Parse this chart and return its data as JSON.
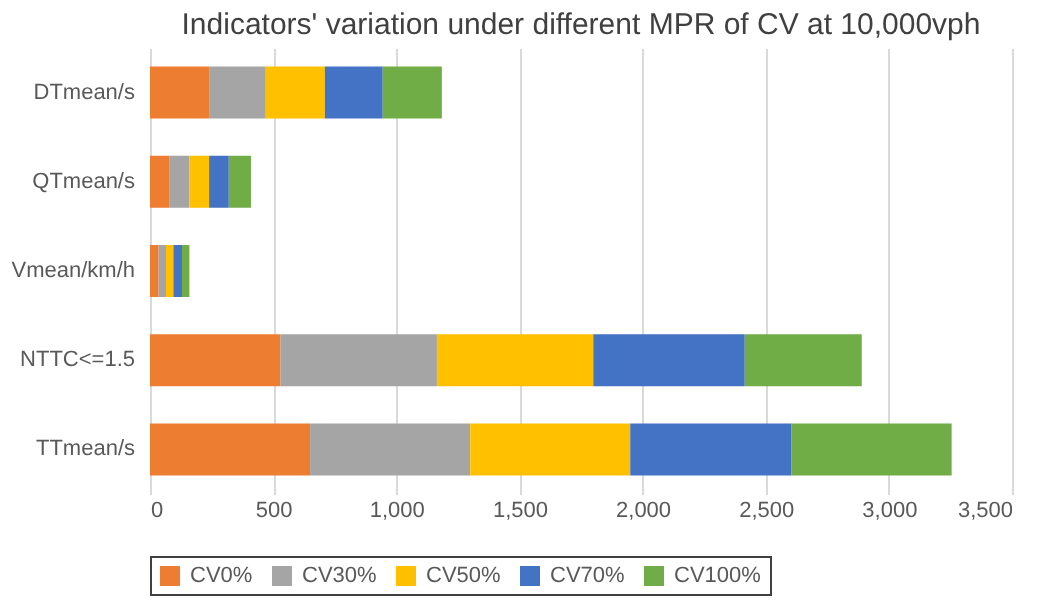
{
  "chart_data": {
    "type": "bar",
    "orientation": "horizontal",
    "stacked": true,
    "title": "Indicators' variation under different MPR of CV at 10,000vph",
    "categories": [
      "DTmean/s",
      "QTmean/s",
      "Vmean/km/h",
      "NTTC<=1.5",
      "TTmean/s"
    ],
    "series": [
      {
        "name": "CV0%",
        "color": "#ed7d31",
        "values": [
          240,
          80,
          35,
          530,
          650
        ]
      },
      {
        "name": "CV30%",
        "color": "#a5a5a5",
        "values": [
          230,
          80,
          30,
          635,
          650
        ]
      },
      {
        "name": "CV50%",
        "color": "#ffc000",
        "values": [
          240,
          80,
          30,
          635,
          650
        ]
      },
      {
        "name": "CV70%",
        "color": "#4472c4",
        "values": [
          235,
          80,
          35,
          615,
          655
        ]
      },
      {
        "name": "CV100%",
        "color": "#70ad47",
        "values": [
          240,
          90,
          30,
          475,
          650
        ]
      }
    ],
    "xlim": [
      0,
      3500
    ],
    "xticks": [
      0,
      500,
      {
        "value": 1000,
        "label": "1,000"
      },
      {
        "value": 1500,
        "label": "1,500"
      },
      {
        "value": 2000,
        "label": "2,000"
      },
      {
        "value": 2500,
        "label": "2,500"
      },
      {
        "value": 3000,
        "label": "3,000"
      },
      {
        "value": 3500,
        "label": "3,500"
      }
    ],
    "grid": "x",
    "legend": "bottom"
  }
}
